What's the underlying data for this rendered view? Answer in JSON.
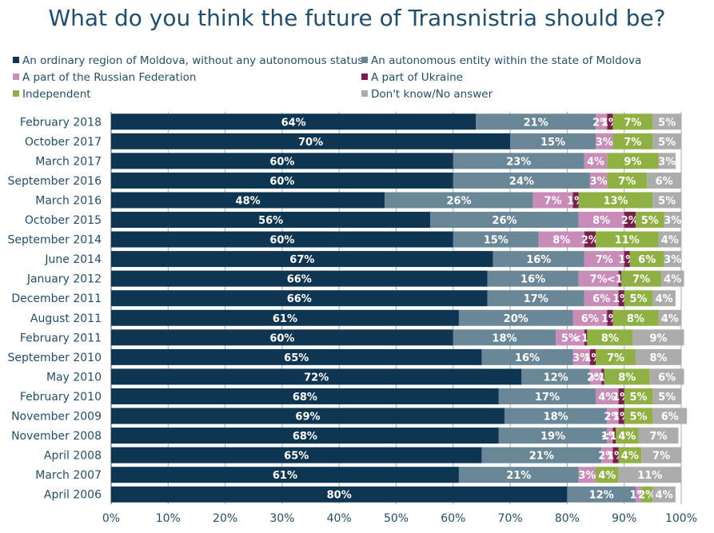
{
  "title": "What do you think the future of Transnistria should be?",
  "colors": {
    "text": "#1f4e6e",
    "grid": "#a8a8a8",
    "series": [
      "#0e3552",
      "#6a8797",
      "#c98cb8",
      "#7a1e4e",
      "#8fb043",
      "#acacac"
    ]
  },
  "legend": [
    "An ordinary region of Moldova, without any autonomous status",
    "An autonomous entity within the state of Moldova",
    "A part of the Russian Federation",
    "A part of Ukraine",
    "Independent",
    "Don't know/No answer"
  ],
  "chart_data": {
    "type": "bar",
    "orientation": "horizontal",
    "stacked": true,
    "title": "What do you think the future of Transnistria should be?",
    "xlim": [
      0,
      100
    ],
    "x_ticks": [
      "0%",
      "10%",
      "20%",
      "30%",
      "40%",
      "50%",
      "60%",
      "70%",
      "80%",
      "90%",
      "100%"
    ],
    "legend_position": "top",
    "grid": true,
    "categories": [
      "February 2018",
      "October 2017",
      "March 2017",
      "September 2016",
      "March 2016",
      "October 2015",
      "September 2014",
      "June 2014",
      "January 2012",
      "December 2011",
      "August 2011",
      "February 2011",
      "September 2010",
      "May 2010",
      "February 2010",
      "November 2009",
      "November 2008",
      "April 2008",
      "March 2007",
      "April 2006"
    ],
    "series": [
      {
        "name": "An ordinary region of Moldova, without any autonomous status",
        "values": [
          64,
          70,
          60,
          60,
          48,
          56,
          60,
          67,
          66,
          66,
          61,
          60,
          65,
          72,
          68,
          69,
          68,
          65,
          61,
          80
        ],
        "labels": [
          "64%",
          "70%",
          "60%",
          "60%",
          "48%",
          "56%",
          "60%",
          "67%",
          "66%",
          "66%",
          "61%",
          "60%",
          "65%",
          "72%",
          "68%",
          "69%",
          "68%",
          "65%",
          "61%",
          "80%"
        ]
      },
      {
        "name": "An autonomous entity within the state of Moldova",
        "values": [
          21,
          15,
          23,
          24,
          26,
          26,
          15,
          16,
          16,
          17,
          20,
          18,
          16,
          12,
          17,
          18,
          19,
          21,
          21,
          12
        ],
        "labels": [
          "21%",
          "15%",
          "23%",
          "24%",
          "26%",
          "26%",
          "15%",
          "16%",
          "16%",
          "17%",
          "20%",
          "18%",
          "16%",
          "12%",
          "17%",
          "18%",
          "19%",
          "21%",
          "21%",
          "12%"
        ]
      },
      {
        "name": "A part of the Russian Federation",
        "values": [
          2,
          3,
          4,
          3,
          7,
          8,
          8,
          7,
          7,
          6,
          6,
          5,
          3,
          2,
          4,
          2,
          1,
          2,
          3,
          1
        ],
        "labels": [
          "2%",
          "3%",
          "4%",
          "3%",
          "7%",
          "8%",
          "8%",
          "7%",
          "7%",
          "6%",
          "6%",
          "5%",
          "3%",
          "2%",
          "4%",
          "2%",
          "1%",
          "2%",
          "3%",
          "1%"
        ]
      },
      {
        "name": "A part of Ukraine",
        "values": [
          1,
          0,
          0,
          0,
          1,
          2,
          2,
          1,
          0.5,
          1,
          1,
          0.5,
          1,
          0.5,
          1,
          1,
          0.5,
          1,
          0,
          0
        ],
        "labels": [
          "1%",
          "",
          "",
          "",
          "1%",
          "2%",
          "2%",
          "1%",
          "<1%",
          "1%",
          "1%",
          "<1%",
          "1%",
          "<1%",
          "1%",
          "1%",
          "<1%",
          "1%",
          "",
          ""
        ]
      },
      {
        "name": "Independent",
        "values": [
          7,
          7,
          9,
          7,
          13,
          5,
          11,
          6,
          7,
          5,
          8,
          8,
          7,
          8,
          5,
          5,
          4,
          4,
          4,
          2
        ],
        "labels": [
          "7%",
          "7%",
          "9%",
          "7%",
          "13%",
          "5%",
          "11%",
          "6%",
          "7%",
          "5%",
          "8%",
          "8%",
          "7%",
          "8%",
          "5%",
          "5%",
          "4%",
          "4%",
          "4%",
          "2%"
        ]
      },
      {
        "name": "Don't know/No answer",
        "values": [
          5,
          5,
          3,
          6,
          5,
          3,
          4,
          3,
          4,
          4,
          4,
          9,
          8,
          6,
          5,
          6,
          7,
          7,
          11,
          4
        ],
        "labels": [
          "5%",
          "5%",
          "3%",
          "6%",
          "5%",
          "3%",
          "4%",
          "3%",
          "4%",
          "4%",
          "4%",
          "9%",
          "8%",
          "6%",
          "5%",
          "6%",
          "7%",
          "7%",
          "11%",
          "4%"
        ]
      }
    ]
  }
}
